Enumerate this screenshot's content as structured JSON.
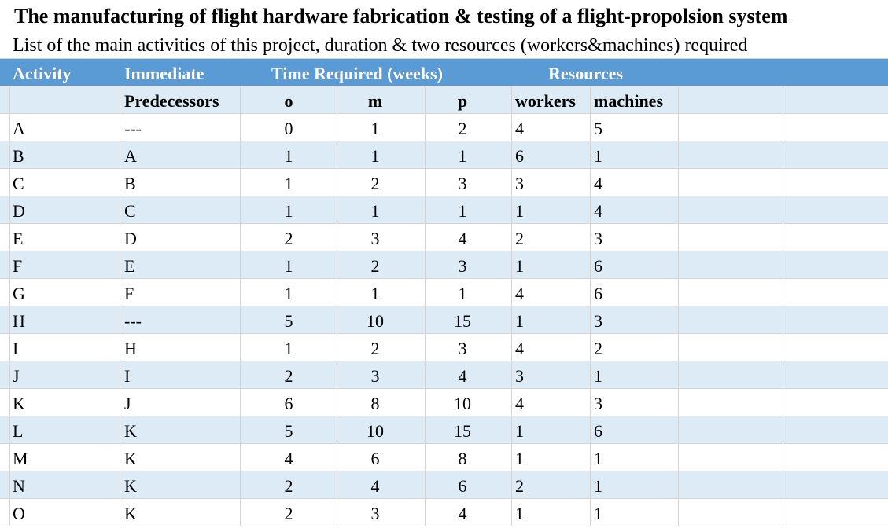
{
  "header": {
    "title": "The manufacturing of flight hardware fabrication & testing of a flight-propolsion system",
    "subtitle": "List of the main activities of this project, duration & two resources (workers&machines) required"
  },
  "table": {
    "header_row1": [
      "Activity",
      "Immediate",
      "Time Required (weeks)",
      "Resources"
    ],
    "header_row2": [
      "Predecessors",
      "o",
      "m",
      "p",
      "workers",
      "machines"
    ],
    "rows": [
      [
        "A",
        "---",
        0,
        1,
        2,
        4,
        5
      ],
      [
        "B",
        "A",
        1,
        1,
        1,
        6,
        1
      ],
      [
        "C",
        "B",
        1,
        2,
        3,
        3,
        4
      ],
      [
        "D",
        "C",
        1,
        1,
        1,
        1,
        4
      ],
      [
        "E",
        "D",
        2,
        3,
        4,
        2,
        3
      ],
      [
        "F",
        "E",
        1,
        2,
        3,
        1,
        6
      ],
      [
        "G",
        "F",
        1,
        1,
        1,
        4,
        6
      ],
      [
        "H",
        "---",
        5,
        10,
        15,
        1,
        3
      ],
      [
        "I",
        "H",
        1,
        2,
        3,
        4,
        2
      ],
      [
        "J",
        "I",
        2,
        3,
        4,
        3,
        1
      ],
      [
        "K",
        "J",
        6,
        8,
        10,
        4,
        3
      ],
      [
        "L",
        "K",
        5,
        10,
        15,
        1,
        6
      ],
      [
        "M",
        "K",
        4,
        6,
        8,
        1,
        1
      ],
      [
        "N",
        "K",
        2,
        4,
        6,
        2,
        1
      ],
      [
        "O",
        "K",
        2,
        3,
        4,
        1,
        1
      ]
    ]
  }
}
